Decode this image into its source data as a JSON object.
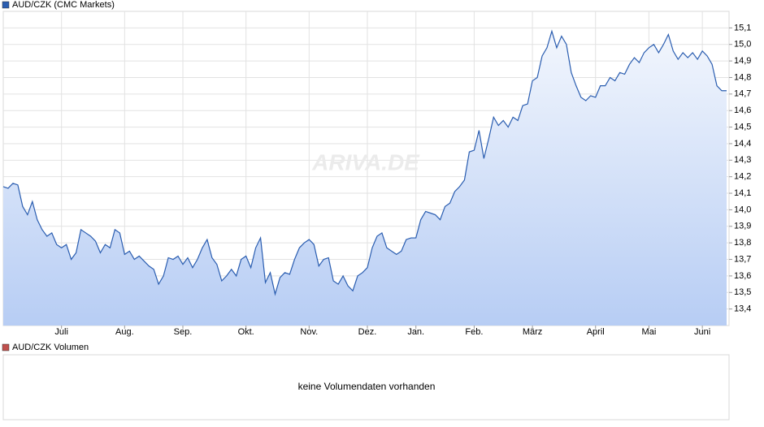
{
  "chart_data": {
    "type": "area",
    "series": [
      {
        "name": "AUD/CZK (CMC Markets)",
        "color": "#2a5db0",
        "values": [
          14.14,
          14.13,
          14.16,
          14.15,
          14.02,
          13.97,
          14.05,
          13.94,
          13.88,
          13.84,
          13.86,
          13.79,
          13.77,
          13.79,
          13.7,
          13.74,
          13.88,
          13.86,
          13.84,
          13.81,
          13.74,
          13.79,
          13.77,
          13.88,
          13.86,
          13.73,
          13.75,
          13.7,
          13.72,
          13.69,
          13.66,
          13.64,
          13.55,
          13.6,
          13.71,
          13.7,
          13.72,
          13.67,
          13.71,
          13.65,
          13.7,
          13.77,
          13.82,
          13.71,
          13.67,
          13.57,
          13.6,
          13.64,
          13.6,
          13.7,
          13.72,
          13.65,
          13.77,
          13.83,
          13.56,
          13.62,
          13.49,
          13.59,
          13.62,
          13.61,
          13.7,
          13.77,
          13.8,
          13.82,
          13.79,
          13.66,
          13.7,
          13.71,
          13.57,
          13.55,
          13.6,
          13.54,
          13.51,
          13.6,
          13.62,
          13.65,
          13.77,
          13.84,
          13.86,
          13.77,
          13.75,
          13.73,
          13.75,
          13.82,
          13.83,
          13.83,
          13.94,
          13.99,
          13.98,
          13.97,
          13.94,
          14.02,
          14.04,
          14.11,
          14.14,
          14.18,
          14.35,
          14.36,
          14.48,
          14.31,
          14.43,
          14.56,
          14.51,
          14.54,
          14.5,
          14.56,
          14.54,
          14.63,
          14.64,
          14.78,
          14.8,
          14.93,
          14.98,
          15.08,
          14.98,
          15.05,
          15.0,
          14.83,
          14.75,
          14.68,
          14.66,
          14.69,
          14.68,
          14.75,
          14.75,
          14.8,
          14.78,
          14.83,
          14.82,
          14.88,
          14.92,
          14.89,
          14.95,
          14.98,
          15.0,
          14.95,
          15.0,
          15.06,
          14.96,
          14.91,
          14.95,
          14.92,
          14.95,
          14.91,
          14.96,
          14.93,
          14.88,
          14.75,
          14.72,
          14.72
        ]
      }
    ],
    "xlim": [
      0,
      149
    ],
    "xticks": [
      {
        "value": 12,
        "label": "Juli"
      },
      {
        "value": 25,
        "label": "Aug."
      },
      {
        "value": 37,
        "label": "Sep."
      },
      {
        "value": 50,
        "label": "Okt."
      },
      {
        "value": 63,
        "label": "Nov."
      },
      {
        "value": 75,
        "label": "Dez."
      },
      {
        "value": 85,
        "label": "Jan."
      },
      {
        "value": 97,
        "label": "Feb."
      },
      {
        "value": 109,
        "label": "März"
      },
      {
        "value": 122,
        "label": "April"
      },
      {
        "value": 133,
        "label": "Mai"
      },
      {
        "value": 144,
        "label": "Juni"
      }
    ],
    "ylim": [
      13.3,
      15.2
    ],
    "yticks": [
      {
        "value": 13.4,
        "label": "13,4"
      },
      {
        "value": 13.5,
        "label": "13,5"
      },
      {
        "value": 13.6,
        "label": "13,6"
      },
      {
        "value": 13.7,
        "label": "13,7"
      },
      {
        "value": 13.8,
        "label": "13,8"
      },
      {
        "value": 13.9,
        "label": "13,9"
      },
      {
        "value": 14.0,
        "label": "14,0"
      },
      {
        "value": 14.1,
        "label": "14,1"
      },
      {
        "value": 14.2,
        "label": "14,2"
      },
      {
        "value": 14.3,
        "label": "14,3"
      },
      {
        "value": 14.4,
        "label": "14,4"
      },
      {
        "value": 14.5,
        "label": "14,5"
      },
      {
        "value": 14.6,
        "label": "14,6"
      },
      {
        "value": 14.7,
        "label": "14,7"
      },
      {
        "value": 14.8,
        "label": "14,8"
      },
      {
        "value": 14.9,
        "label": "14,9"
      },
      {
        "value": 15.0,
        "label": "15,0"
      },
      {
        "value": 15.1,
        "label": "15,1"
      }
    ],
    "grid": true,
    "watermark": "ARIVA.DE",
    "volume_panel": {
      "legend": "AUD/CZK Volumen",
      "color": "#c0504d",
      "message": "keine Volumendaten vorhanden"
    }
  }
}
